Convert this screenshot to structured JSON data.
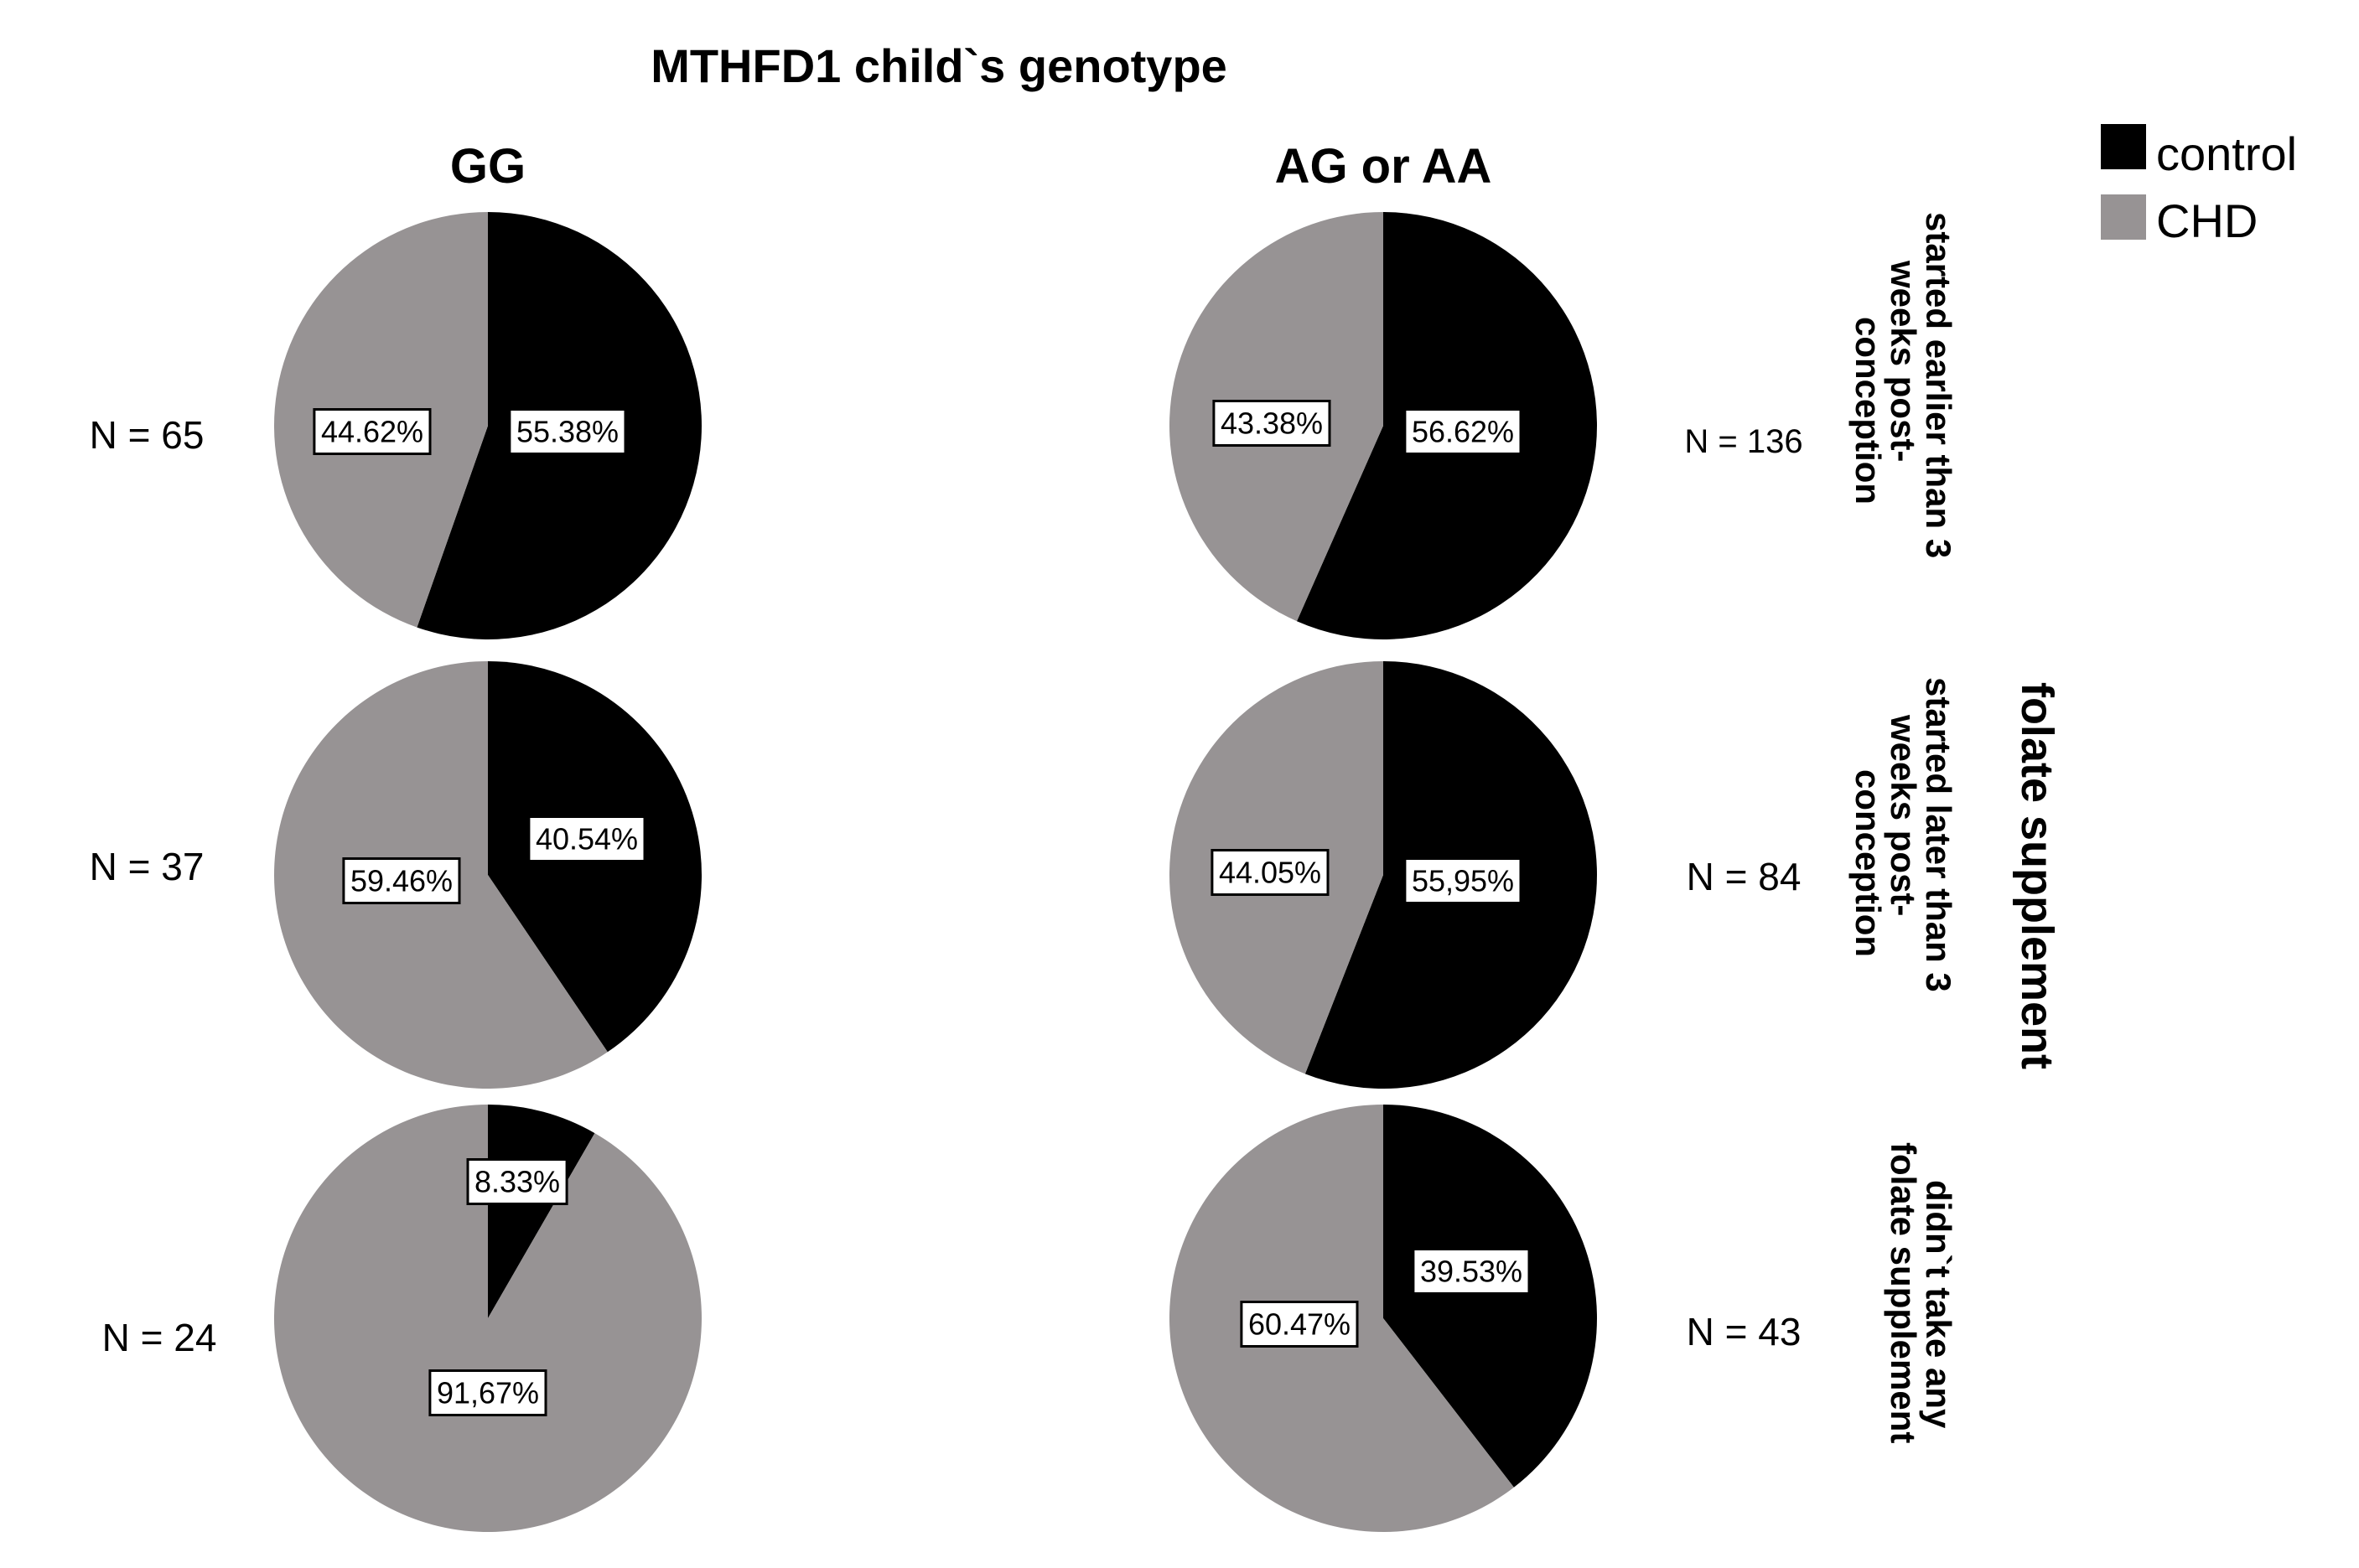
{
  "colors": {
    "control": "#000000",
    "CHD": "#979394",
    "label_bg": "#ffffff"
  },
  "chart_data": {
    "type": "pie",
    "title": "MTHFD1 child`s genotype",
    "column_facet": [
      "GG",
      "AG or AA"
    ],
    "row_facet_title": "folate supplement",
    "row_facet": [
      [
        "started earlier than 3",
        "weeks post-",
        "conception"
      ],
      [
        "started later than 3",
        "weeks post-",
        "conception"
      ],
      [
        "didn`t take any",
        "folate supplement"
      ]
    ],
    "legend": [
      {
        "name": "control",
        "color": "#000000"
      },
      {
        "name": "CHD",
        "color": "#979394"
      }
    ],
    "pies": [
      {
        "row": 0,
        "col": 0,
        "n_label": "N = 65",
        "control": 55.38,
        "chd": 44.62,
        "control_label": "55.38%",
        "chd_label": "44.62%"
      },
      {
        "row": 0,
        "col": 1,
        "n_label": "N = 136",
        "control": 56.62,
        "chd": 43.38,
        "control_label": "56.62%",
        "chd_label": "43.38%"
      },
      {
        "row": 1,
        "col": 0,
        "n_label": "N = 37",
        "control": 40.54,
        "chd": 59.46,
        "control_label": "40.54%",
        "chd_label": "59.46%"
      },
      {
        "row": 1,
        "col": 1,
        "n_label": "N = 84",
        "control": 55.95,
        "chd": 44.05,
        "control_label": "55,95%",
        "chd_label": "44.05%"
      },
      {
        "row": 2,
        "col": 0,
        "n_label": "N = 24",
        "control": 8.33,
        "chd": 91.67,
        "control_label": "8.33%",
        "chd_label": "91,67%"
      },
      {
        "row": 2,
        "col": 1,
        "n_label": "N = 43",
        "control": 39.53,
        "chd": 60.47,
        "control_label": "39.53%",
        "chd_label": "60.47%"
      }
    ]
  }
}
